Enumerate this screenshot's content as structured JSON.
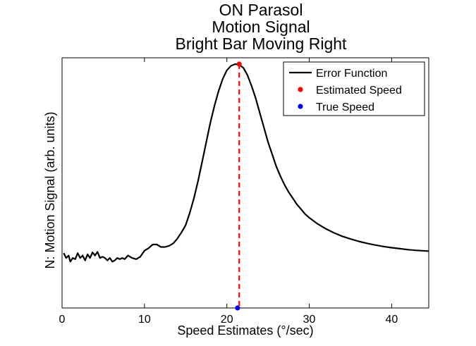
{
  "chart_data": {
    "type": "line",
    "title": [
      "ON Parasol",
      "Motion Signal",
      "Bright Bar Moving Right"
    ],
    "xlabel": "Speed Estimates (°/sec)",
    "ylabel": "N: Motion Signal (arb. units)",
    "xlim": [
      0,
      44.5
    ],
    "ylim": [
      0,
      1
    ],
    "xticks": [
      0,
      10,
      20,
      30,
      40
    ],
    "xtick_labels": [
      "0",
      "10",
      "20",
      "30",
      "40"
    ],
    "yticks_shown": false,
    "grid": false,
    "legend_position": "top-right",
    "legend": {
      "error_label": "Error Function",
      "estimated_label": "Estimated Speed",
      "true_label": "True Speed"
    },
    "colors": {
      "error": "#000000",
      "estimated": "#ff0000",
      "true": "#0000ff"
    },
    "series": [
      {
        "name": "Error Function",
        "x": [
          0.2,
          0.5,
          0.8,
          1.0,
          1.3,
          1.6,
          1.9,
          2.2,
          2.5,
          2.8,
          3.1,
          3.4,
          3.7,
          4.0,
          4.3,
          4.6,
          4.9,
          5.2,
          5.5,
          5.8,
          6.1,
          6.4,
          6.7,
          7.0,
          7.3,
          7.6,
          8.0,
          8.5,
          9.0,
          9.5,
          10.0,
          10.5,
          11.0,
          11.5,
          12.0,
          12.5,
          13.0,
          13.5,
          14.0,
          14.5,
          15.0,
          15.5,
          16.0,
          16.5,
          17.0,
          17.5,
          18.0,
          18.5,
          19.0,
          19.5,
          20.0,
          20.5,
          21.0,
          21.5,
          22.0,
          22.5,
          23.0,
          23.5,
          24.0,
          24.5,
          25.0,
          25.5,
          26.0,
          26.5,
          27.0,
          27.5,
          28.0,
          28.5,
          29.0,
          29.5,
          30.0,
          31.0,
          32.0,
          33.0,
          34.0,
          35.0,
          36.0,
          37.0,
          38.0,
          39.0,
          40.0,
          41.0,
          42.0,
          43.0,
          44.5
        ],
        "y": [
          0.225,
          0.205,
          0.215,
          0.19,
          0.205,
          0.2,
          0.225,
          0.205,
          0.215,
          0.195,
          0.22,
          0.205,
          0.228,
          0.215,
          0.23,
          0.205,
          0.21,
          0.205,
          0.195,
          0.205,
          0.19,
          0.195,
          0.205,
          0.2,
          0.205,
          0.2,
          0.215,
          0.205,
          0.2,
          0.21,
          0.235,
          0.245,
          0.26,
          0.26,
          0.25,
          0.25,
          0.255,
          0.265,
          0.285,
          0.31,
          0.34,
          0.39,
          0.45,
          0.52,
          0.6,
          0.68,
          0.76,
          0.83,
          0.89,
          0.94,
          0.975,
          0.993,
          1.0,
          0.998,
          0.985,
          0.955,
          0.91,
          0.86,
          0.8,
          0.74,
          0.68,
          0.63,
          0.58,
          0.54,
          0.505,
          0.475,
          0.45,
          0.425,
          0.405,
          0.385,
          0.37,
          0.345,
          0.325,
          0.308,
          0.294,
          0.283,
          0.273,
          0.265,
          0.258,
          0.252,
          0.247,
          0.243,
          0.239,
          0.236,
          0.233
        ]
      },
      {
        "name": "Estimated Speed",
        "x": [
          21.5
        ],
        "y": [
          1.0
        ]
      },
      {
        "name": "True Speed",
        "x": [
          21.3
        ],
        "y": [
          0.0
        ]
      }
    ]
  }
}
